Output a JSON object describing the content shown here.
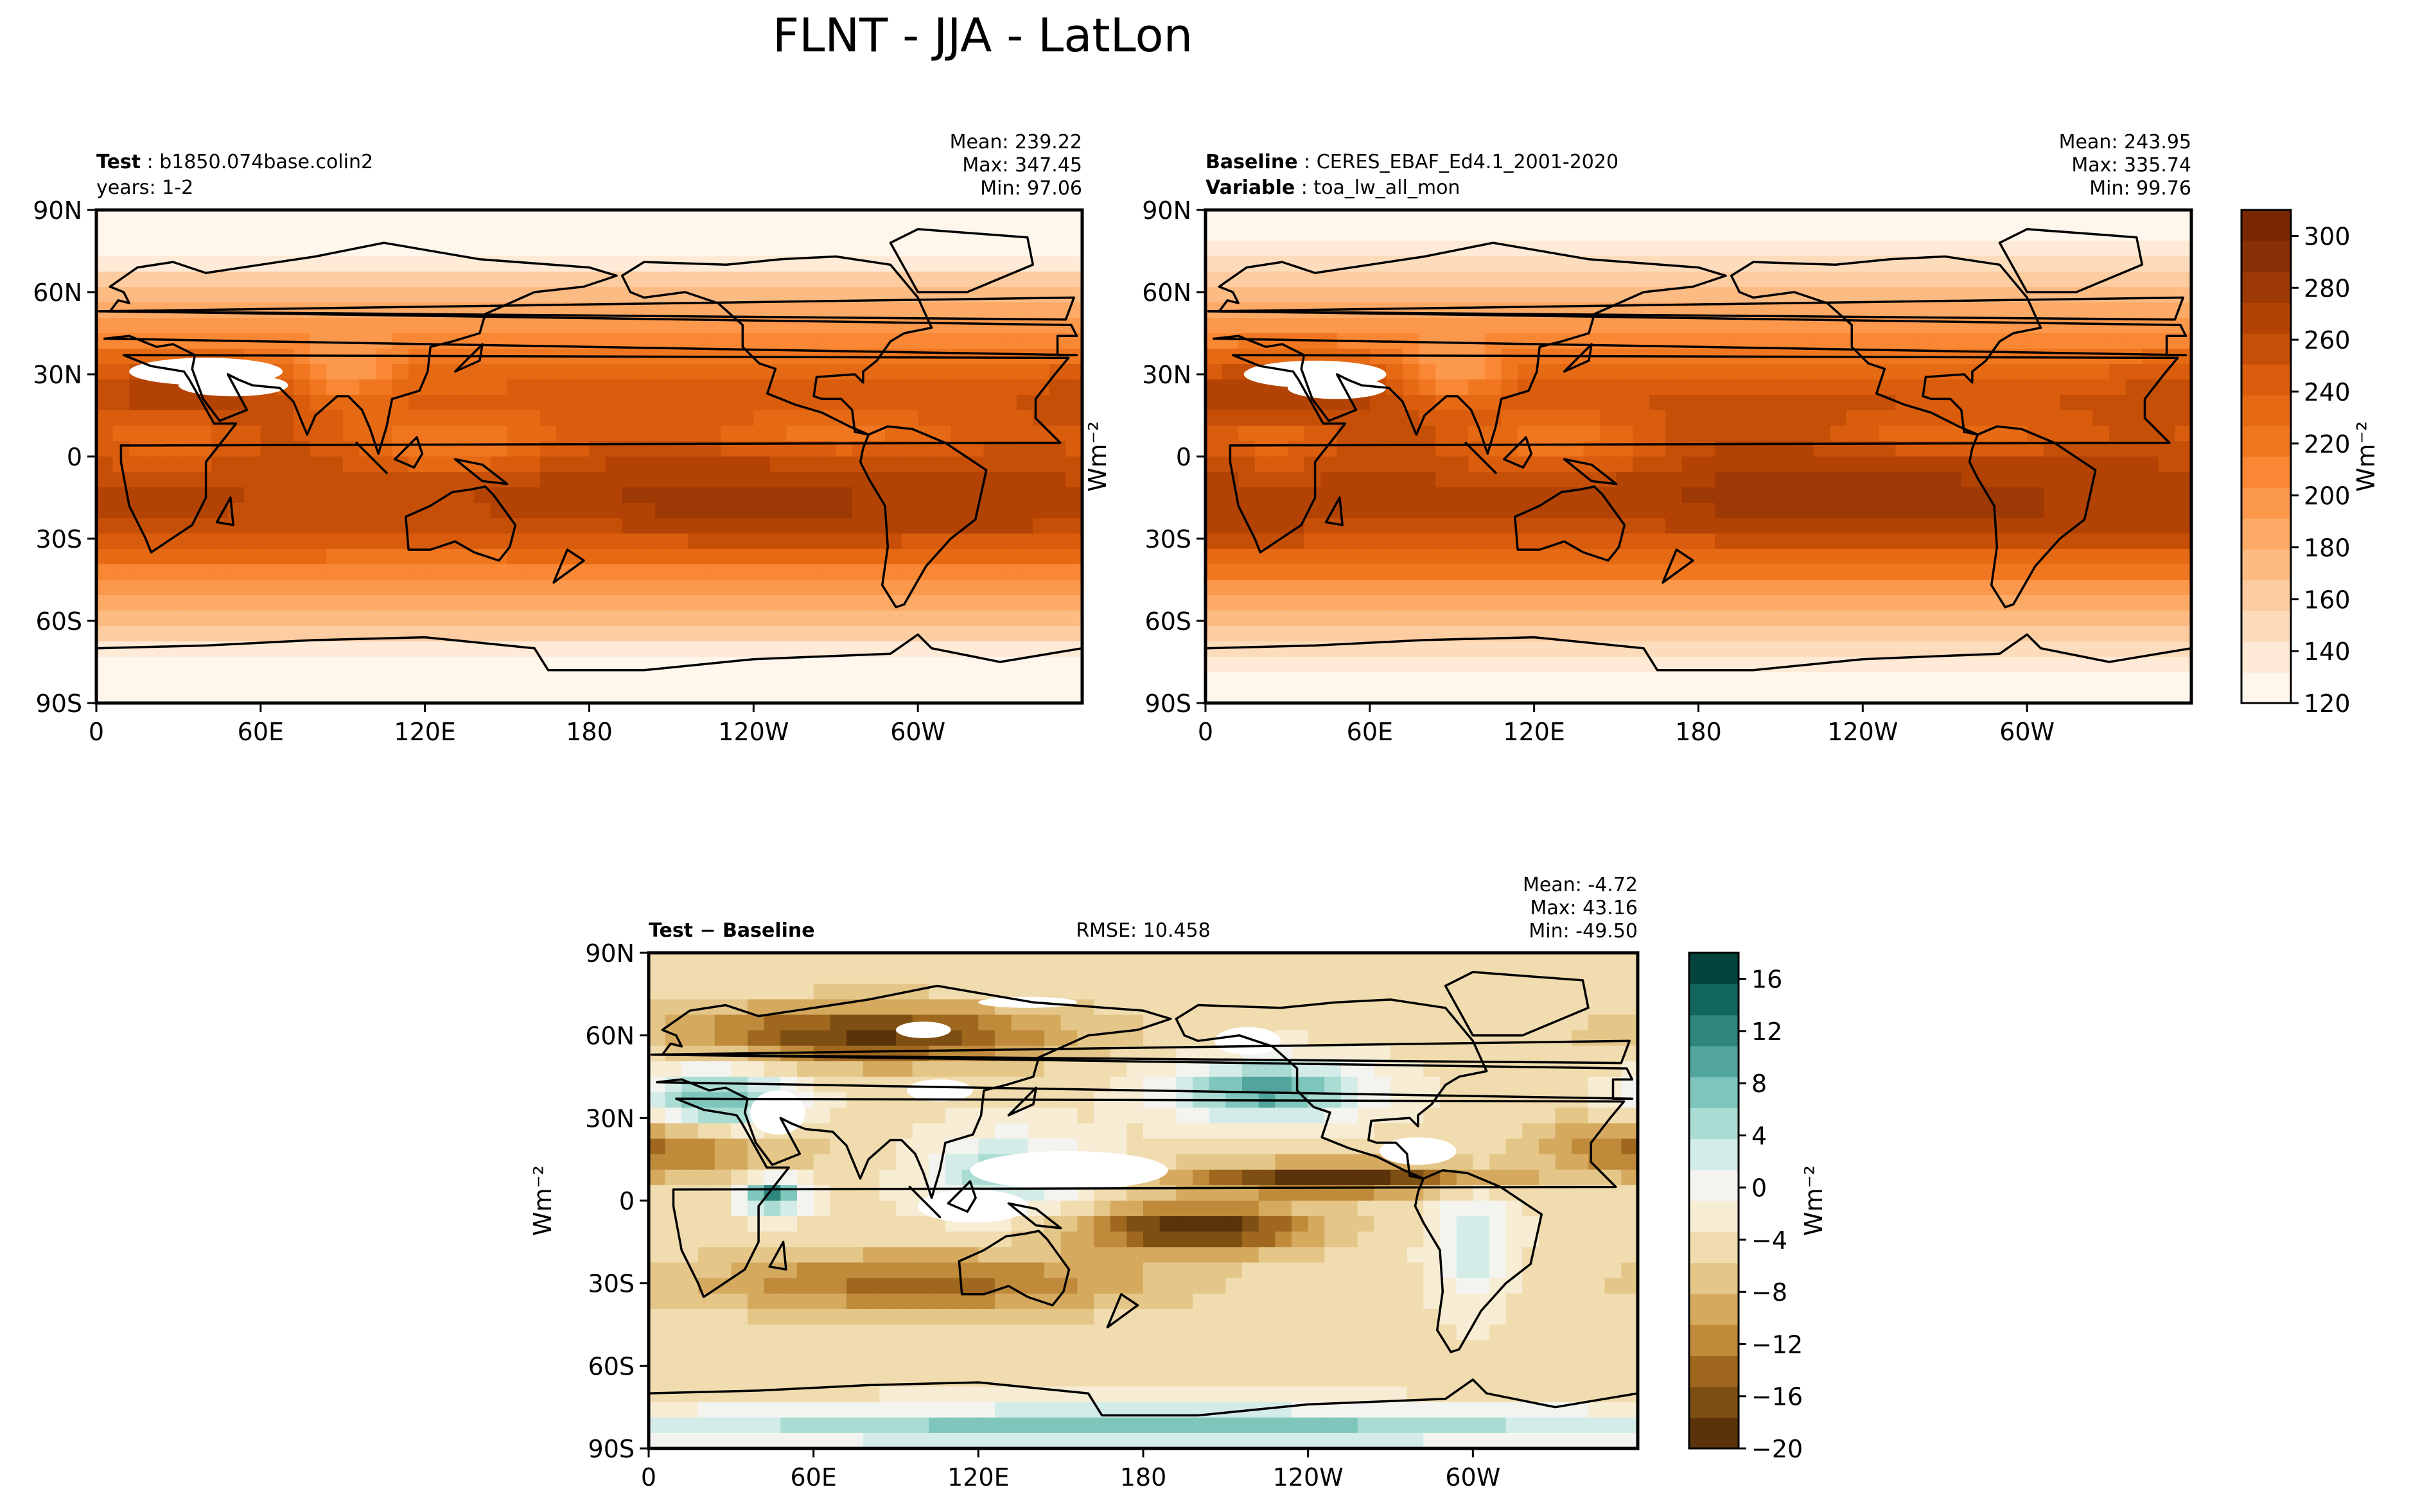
{
  "title": "FLNT - JJA - LatLon",
  "colors": {
    "frame": "#000000",
    "coast": "#000000",
    "missing": "#ffffff",
    "oranges": [
      "#fff6ec",
      "#feead6",
      "#fddcbc",
      "#fdcca0",
      "#fdbb84",
      "#fdaa67",
      "#fc984c",
      "#f98734",
      "#f07720",
      "#e66a13",
      "#d95d0c",
      "#c64f08",
      "#b24304",
      "#9d3904",
      "#883005",
      "#7a2804"
    ],
    "brbg": [
      "#5a330a",
      "#7e4f12",
      "#a0681f",
      "#bf8a3a",
      "#d5aa5f",
      "#e4c689",
      "#f0dcae",
      "#f7ecd4",
      "#f3f4f0",
      "#d4ece8",
      "#aadcd4",
      "#7ec6bc",
      "#52a59c",
      "#2d857b",
      "#11675d",
      "#03453d"
    ]
  },
  "chart_data": [
    {
      "type": "heatmap",
      "id": "test",
      "label_bold": "Test",
      "label_sep": ":",
      "label_value": "b1850.074base.colin2",
      "sublabel": "years: 1-2",
      "stats": [
        "Mean: 239.22",
        "Max: 347.45",
        "Min: 97.06"
      ],
      "variable": "FLNT",
      "units": "Wm⁻²",
      "xlim": [
        0,
        360
      ],
      "ylim": [
        -90,
        90
      ],
      "xticks": [
        "0",
        "60E",
        "120E",
        "180",
        "120W",
        "60W"
      ],
      "yticks": [
        "90N",
        "60N",
        "30N",
        "0",
        "30S",
        "60S",
        "90S"
      ],
      "contour_levels": [
        120,
        130,
        140,
        150,
        160,
        170,
        180,
        190,
        200,
        210,
        220,
        230,
        240,
        250,
        260,
        270,
        280,
        290,
        300,
        310
      ]
    },
    {
      "type": "heatmap",
      "id": "baseline",
      "label_bold": "Baseline",
      "label_sep": ":",
      "label_value": "CERES_EBAF_Ed4.1_2001-2020",
      "label2_bold": "Variable",
      "label2_value": "toa_lw_all_mon",
      "stats": [
        "Mean: 243.95",
        "Max: 335.74",
        "Min: 99.76"
      ],
      "units": "Wm⁻²",
      "xlim": [
        0,
        360
      ],
      "ylim": [
        -90,
        90
      ],
      "xticks": [
        "0",
        "60E",
        "120E",
        "180",
        "120W",
        "60W"
      ],
      "yticks": [
        "90N",
        "60N",
        "30N",
        "0",
        "30S",
        "60S",
        "90S"
      ],
      "colorbar": {
        "ticks": [
          "120",
          "140",
          "160",
          "180",
          "200",
          "220",
          "240",
          "260",
          "280",
          "300"
        ],
        "label": "Wm⁻²",
        "range": [
          120,
          310
        ]
      }
    },
    {
      "type": "heatmap",
      "id": "difference",
      "label_bold": "Test − Baseline",
      "rmse": "RMSE: 10.458",
      "stats": [
        "Mean: -4.72",
        "Max: 43.16",
        "Min: -49.50"
      ],
      "units": "Wm⁻²",
      "xlim": [
        0,
        360
      ],
      "ylim": [
        -90,
        90
      ],
      "xticks": [
        "0",
        "60E",
        "120E",
        "180",
        "120W",
        "60W"
      ],
      "yticks": [
        "90N",
        "60N",
        "30N",
        "0",
        "30S",
        "60S",
        "90S"
      ],
      "colorbar": {
        "ticks": [
          "−20",
          "−16",
          "−12",
          "−8",
          "−4",
          "0",
          "4",
          "8",
          "12",
          "16"
        ],
        "label": "Wm⁻²",
        "range": [
          -20,
          18
        ]
      }
    }
  ]
}
